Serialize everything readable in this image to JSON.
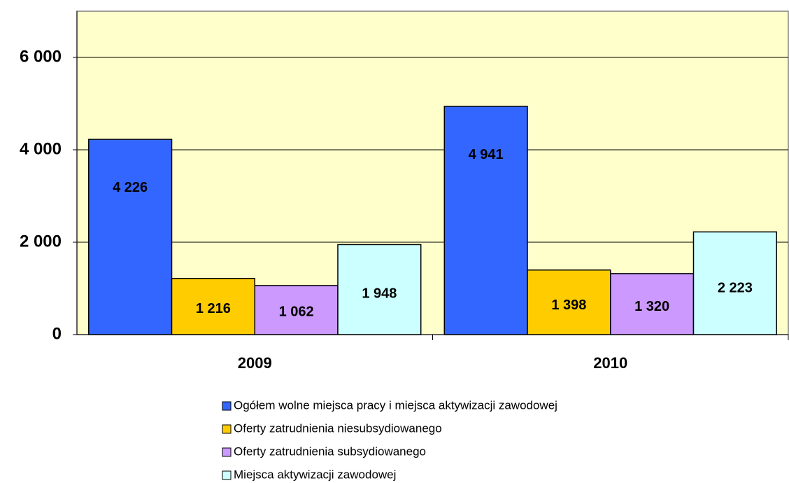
{
  "chart_data": {
    "type": "bar",
    "categories": [
      "2009",
      "2010"
    ],
    "series": [
      {
        "name": "Ogółem wolne miejsca pracy i miejsca aktywizacji zawodowej",
        "color": "#3366ff",
        "values": [
          4226,
          4941
        ],
        "value_labels": [
          "4 226",
          "4 941"
        ]
      },
      {
        "name": "Oferty zatrudnienia niesubsydiowanego",
        "color": "#ffcc00",
        "values": [
          1216,
          1398
        ],
        "value_labels": [
          "1 216",
          "1 398"
        ]
      },
      {
        "name": "Oferty zatrudnienia subsydiowanego",
        "color": "#cc99ff",
        "values": [
          1062,
          1320
        ],
        "value_labels": [
          "1 062",
          "1 320"
        ]
      },
      {
        "name": "Miejsca aktywizacji zawodowej",
        "color": "#ccffff",
        "values": [
          1948,
          2223
        ],
        "value_labels": [
          "1 948",
          "2 223"
        ]
      }
    ],
    "ylim": [
      0,
      7000
    ],
    "yticks": [
      0,
      {
        "value": 2000,
        "label": "2 000"
      },
      {
        "value": 4000,
        "label": "4 000"
      },
      {
        "value": 6000,
        "label": "6 000"
      }
    ],
    "grid": true,
    "legend": "bottom",
    "plot_background": "#ffffcc"
  }
}
